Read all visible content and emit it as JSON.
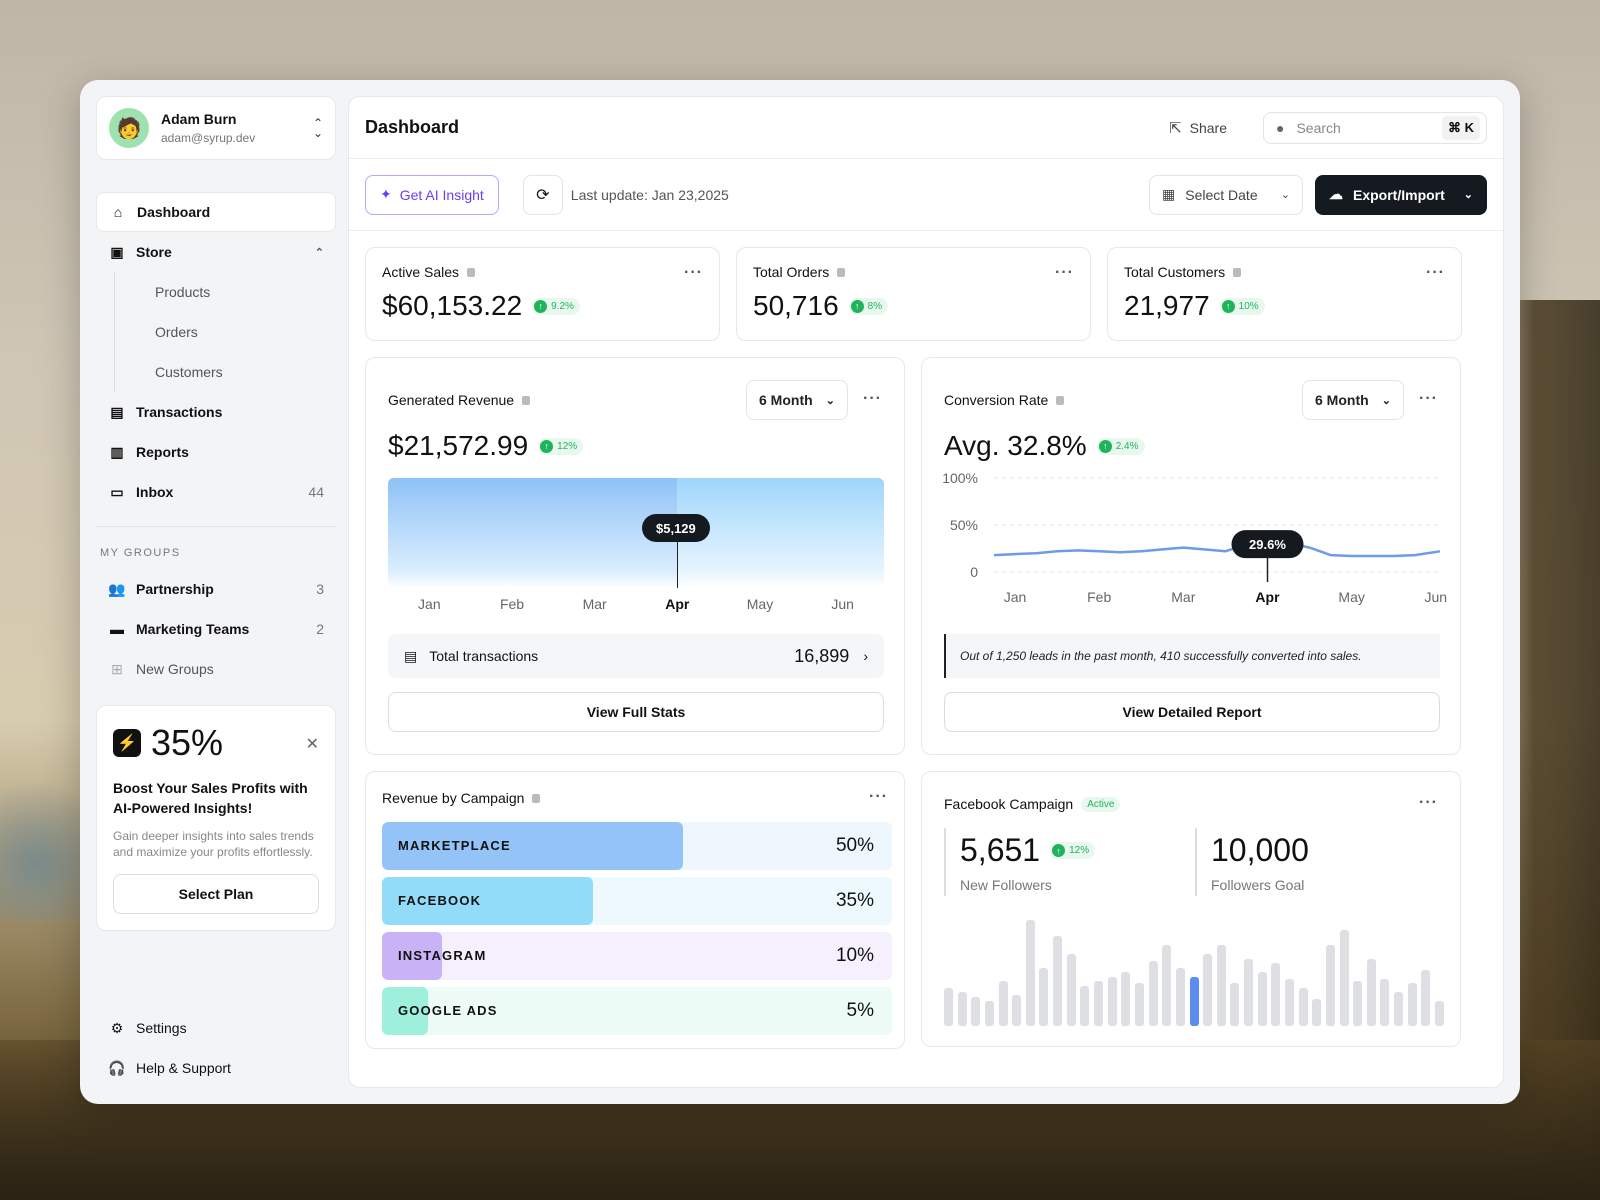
{
  "user": {
    "name": "Adam Burn",
    "email": "adam@syrup.dev"
  },
  "nav": {
    "dashboard": "Dashboard",
    "store": "Store",
    "store_sub": [
      "Products",
      "Orders",
      "Customers"
    ],
    "transactions": "Transactions",
    "reports": "Reports",
    "inbox": "Inbox",
    "inbox_count": "44"
  },
  "groups": {
    "heading": "MY GROUPS",
    "items": [
      {
        "label": "Partnership",
        "count": "3"
      },
      {
        "label": "Marketing Teams",
        "count": "2"
      }
    ],
    "new": "New Groups"
  },
  "promo": {
    "value": "35%",
    "title": "Boost Your Sales Profits with AI-Powered Insights!",
    "text": "Gain deeper insights into sales trends and maximize your profits effortlessly.",
    "button": "Select Plan"
  },
  "bottom": {
    "settings": "Settings",
    "help": "Help & Support"
  },
  "topbar": {
    "title": "Dashboard",
    "share": "Share",
    "search_placeholder": "Search",
    "shortcut": "⌘ K"
  },
  "toolbar": {
    "ai": "Get AI Insight",
    "last_update": "Last update: Jan 23,2025",
    "select_date": "Select Date",
    "export": "Export/Import"
  },
  "stats": [
    {
      "label": "Active Sales",
      "value": "$60,153.22",
      "change": "9.2%"
    },
    {
      "label": "Total Orders",
      "value": "50,716",
      "change": "8%"
    },
    {
      "label": "Total Customers",
      "value": "21,977",
      "change": "10%"
    }
  ],
  "revenue": {
    "title": "Generated Revenue",
    "range": "6 Month",
    "value": "$21,572.99",
    "change": "12%",
    "tooltip": "$5,129",
    "months": [
      "Jan",
      "Feb",
      "Mar",
      "Apr",
      "May",
      "Jun"
    ],
    "active_month": "Apr",
    "total_label": "Total transactions",
    "total_value": "16,899",
    "button": "View Full Stats"
  },
  "conversion": {
    "title": "Conversion Rate",
    "range": "6 Month",
    "value": "Avg. 32.8%",
    "change": "2.4%",
    "tooltip": "29.6%",
    "y_labels": [
      "100%",
      "50%",
      "0"
    ],
    "note": "Out of 1,250 leads in the past month, 410 successfully converted into sales.",
    "button": "View Detailed Report"
  },
  "chart_data": {
    "type": "line",
    "categories": [
      "Jan",
      "Feb",
      "Mar",
      "Apr",
      "May",
      "Jun"
    ],
    "x": [
      0,
      0.25,
      0.5,
      0.75,
      1,
      1.25,
      1.5,
      1.75,
      2,
      2.25,
      2.5,
      2.75,
      3,
      3.25,
      3.5,
      3.75,
      4,
      4.25,
      4.5,
      4.75,
      5,
      5.3
    ],
    "series": [
      {
        "values": [
          18,
          19,
          20,
          22,
          23,
          22,
          21,
          22,
          24,
          26,
          24,
          22,
          29.6,
          36,
          31,
          26,
          18,
          17,
          17,
          17,
          18,
          22
        ]
      }
    ],
    "ylim": [
      0,
      100
    ],
    "highlight": {
      "category": "Apr",
      "value": 29.6
    }
  },
  "campaign": {
    "title": "Revenue by Campaign",
    "items": [
      {
        "name": "MARKETPLACE",
        "pct": "50%",
        "value": 50,
        "color": "#93c3f7",
        "bg": "#eef6fe"
      },
      {
        "name": "FACEBOOK",
        "pct": "35%",
        "value": 35,
        "color": "#93dcf9",
        "bg": "#eef9fe"
      },
      {
        "name": "INSTAGRAM",
        "pct": "10%",
        "value": 10,
        "color": "#c9b2f5",
        "bg": "#f4f0fd"
      },
      {
        "name": "GOOGLE ADS",
        "pct": "5%",
        "value": 5,
        "color": "#9ef0dc",
        "bg": "#edfcf7"
      }
    ]
  },
  "facebook": {
    "title": "Facebook Campaign",
    "status": "Active",
    "followers": "5,651",
    "followers_change": "12%",
    "followers_label": "New Followers",
    "goal": "10,000",
    "goal_label": "Followers Goal",
    "bars": [
      34,
      30,
      26,
      22,
      40,
      28,
      95,
      52,
      80,
      64,
      36,
      40,
      44,
      48,
      38,
      58,
      72,
      52,
      44,
      64,
      72,
      38,
      60,
      48,
      56,
      42,
      34,
      24,
      72,
      86,
      40,
      60,
      42,
      30,
      38,
      50,
      22
    ],
    "highlight_index": 18
  }
}
